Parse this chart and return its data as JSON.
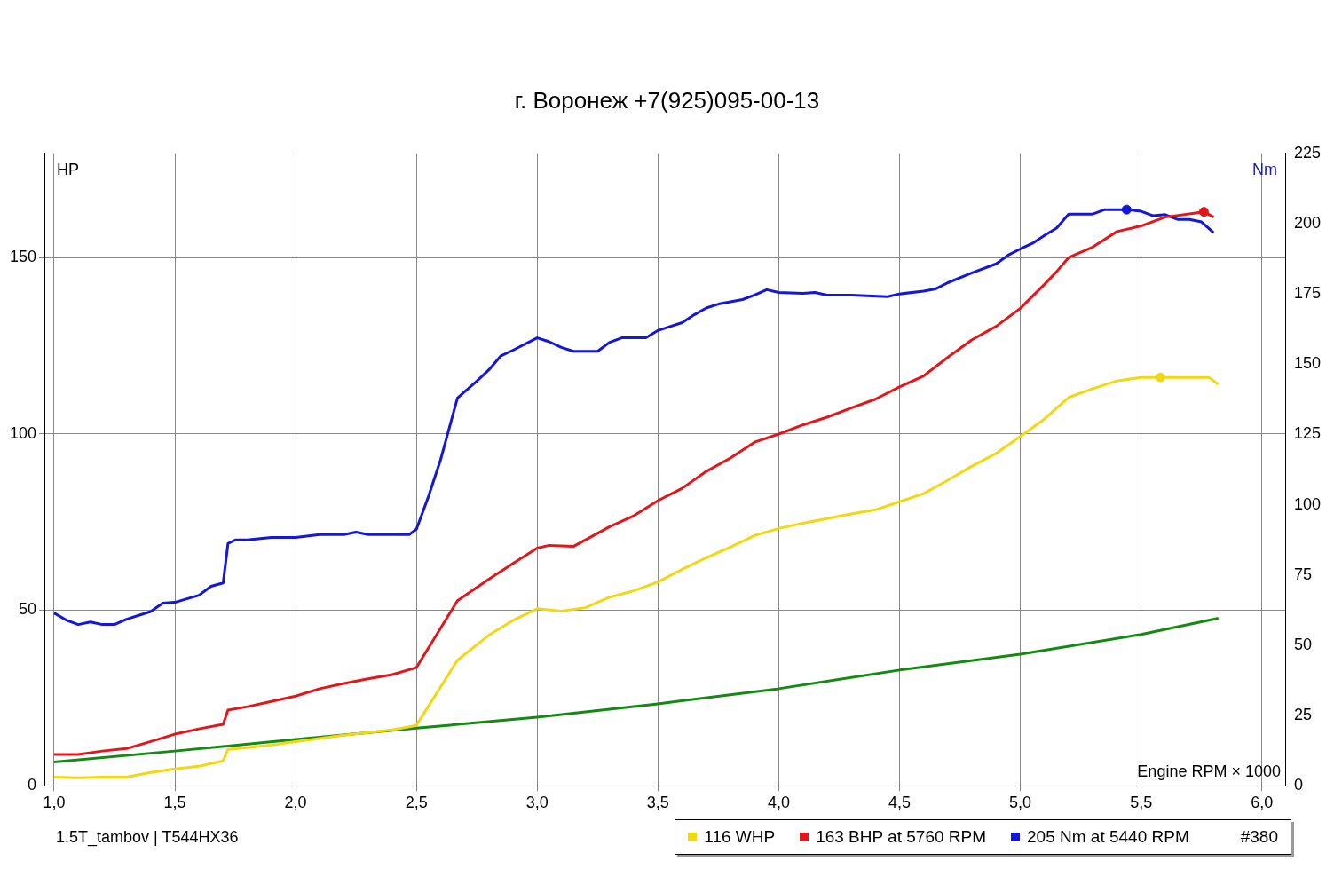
{
  "chart_data": {
    "type": "line",
    "title": "г. Воронеж    +7(925)095-00-13",
    "xlabel": "Engine RPM × 1000",
    "ylabel": "HP",
    "y2label": "Nm",
    "legend_title": "#380",
    "annotations": [
      "1.5T_tambov | T544HX36"
    ],
    "xlim": [
      0.96,
      6.1
    ],
    "xticks": [
      {
        "value": 1,
        "label": "1,0"
      },
      {
        "value": 1.5,
        "label": "1,5"
      },
      {
        "value": 2,
        "label": "2,0"
      },
      {
        "value": 2.5,
        "label": "2,5"
      },
      {
        "value": 3,
        "label": "3,0"
      },
      {
        "value": 3.5,
        "label": "3,5"
      },
      {
        "value": 4,
        "label": "4,0"
      },
      {
        "value": 4.5,
        "label": "4,5"
      },
      {
        "value": 5,
        "label": "5,0"
      },
      {
        "value": 5.5,
        "label": "5,5"
      },
      {
        "value": 6,
        "label": "6,0"
      }
    ],
    "ylim": [
      0,
      179.6
    ],
    "yticks": [
      0,
      50,
      100,
      150
    ],
    "y2lim": [
      0,
      225
    ],
    "y2ticks": [
      0,
      25,
      50,
      75,
      100,
      125,
      150,
      175,
      200,
      225
    ],
    "grid": true,
    "legend": "bottom right",
    "marker": "none",
    "line_style": "solid",
    "series": [
      {
        "name": "116 WHP",
        "color": "#f2d813",
        "x": [
          1.0,
          1.1,
          1.2,
          1.3,
          1.4,
          1.5,
          1.6,
          1.7,
          1.72,
          1.8,
          1.9,
          2.0,
          2.2,
          2.4,
          2.5,
          2.67,
          2.8,
          2.9,
          3.0,
          3.1,
          3.2,
          3.3,
          3.4,
          3.5,
          3.6,
          3.7,
          3.8,
          3.9,
          4.0,
          4.1,
          4.2,
          4.3,
          4.4,
          4.5,
          4.6,
          4.7,
          4.8,
          4.9,
          5.0,
          5.1,
          5.2,
          5.3,
          5.4,
          5.5,
          5.58,
          5.7,
          5.78,
          5.82
        ],
        "values": [
          2.5,
          2.3,
          2.5,
          2.5,
          3.8,
          4.8,
          5.6,
          7.1,
          10.4,
          10.9,
          11.6,
          12.6,
          14.4,
          15.9,
          17.2,
          35.7,
          42.8,
          47,
          50.3,
          49.6,
          50.6,
          53.6,
          55.4,
          57.9,
          61.5,
          64.8,
          67.8,
          71.1,
          73.1,
          74.6,
          75.9,
          77.2,
          78.4,
          80.7,
          83,
          86.8,
          90.8,
          94.4,
          99.2,
          104.2,
          110.3,
          112.8,
          115,
          116,
          116,
          116,
          116,
          114
        ]
      },
      {
        "name": "163 BHP at 5760 RPM",
        "color": "#e3171b",
        "x": [
          1.0,
          1.1,
          1.2,
          1.3,
          1.4,
          1.5,
          1.6,
          1.7,
          1.72,
          1.8,
          1.9,
          2.0,
          2.1,
          2.2,
          2.3,
          2.4,
          2.5,
          2.67,
          2.8,
          2.9,
          3.0,
          3.05,
          3.15,
          3.3,
          3.4,
          3.5,
          3.6,
          3.7,
          3.8,
          3.9,
          4.0,
          4.1,
          4.2,
          4.3,
          4.4,
          4.5,
          4.6,
          4.7,
          4.8,
          4.9,
          5.0,
          5.1,
          5.15,
          5.2,
          5.3,
          5.4,
          5.5,
          5.6,
          5.76,
          5.8
        ],
        "values": [
          8.9,
          8.9,
          9.9,
          10.6,
          12.6,
          14.7,
          16.2,
          17.5,
          21.5,
          22.5,
          24,
          25.5,
          27.6,
          29.1,
          30.4,
          31.6,
          33.6,
          52.6,
          58.7,
          63.2,
          67.5,
          68.3,
          68,
          73.6,
          76.7,
          81,
          84.5,
          89.3,
          93.1,
          97.6,
          99.9,
          102.5,
          104.7,
          107.3,
          109.8,
          113.3,
          116.4,
          121.7,
          126.7,
          130.5,
          135.6,
          142.4,
          146,
          150,
          153,
          157.4,
          159,
          161.5,
          163,
          161.5
        ]
      },
      {
        "name": "205 Nm at 5440 RPM",
        "color": "#1417d6",
        "axis": "y2",
        "x": [
          1.0,
          1.05,
          1.1,
          1.15,
          1.2,
          1.25,
          1.3,
          1.4,
          1.45,
          1.5,
          1.6,
          1.65,
          1.7,
          1.72,
          1.75,
          1.8,
          1.9,
          2.0,
          2.1,
          2.2,
          2.25,
          2.3,
          2.47,
          2.5,
          2.55,
          2.6,
          2.67,
          2.75,
          2.8,
          2.85,
          2.9,
          3.0,
          3.05,
          3.1,
          3.15,
          3.25,
          3.3,
          3.35,
          3.45,
          3.5,
          3.6,
          3.65,
          3.7,
          3.75,
          3.85,
          3.9,
          3.95,
          4.0,
          4.1,
          4.15,
          4.2,
          4.3,
          4.45,
          4.5,
          4.6,
          4.65,
          4.7,
          4.8,
          4.9,
          4.95,
          5.0,
          5.05,
          5.1,
          5.15,
          5.2,
          5.3,
          5.35,
          5.44,
          5.5,
          5.55,
          5.6,
          5.65,
          5.7,
          5.75,
          5.8
        ],
        "values": [
          61.5,
          59,
          57.4,
          58.3,
          57.4,
          57.4,
          59.3,
          62,
          65,
          65.3,
          67.8,
          71,
          72.2,
          86.2,
          87.5,
          87.5,
          88.4,
          88.4,
          89.4,
          89.4,
          90.3,
          89.4,
          89.4,
          91.3,
          103,
          116,
          138,
          144,
          148,
          153,
          155,
          159.4,
          158,
          156,
          154.6,
          154.6,
          157.8,
          159.4,
          159.4,
          162,
          164.8,
          167.6,
          170,
          171.4,
          173,
          174.6,
          176.5,
          175.5,
          175.2,
          175.5,
          174.6,
          174.6,
          174,
          175,
          176,
          176.8,
          179,
          182.5,
          185.7,
          188.8,
          191,
          193,
          195.8,
          198.4,
          203.4,
          203.4,
          205,
          205,
          204.4,
          202.8,
          203.2,
          201.5,
          201.5,
          200.6,
          196.8
        ]
      },
      {
        "color": "#158a12",
        "x": [
          1.0,
          1.5,
          2.0,
          2.5,
          3.0,
          3.5,
          4.0,
          4.5,
          5.0,
          5.5,
          5.82
        ],
        "values": [
          6.8,
          9.9,
          13.2,
          16.4,
          19.5,
          23.3,
          27.6,
          32.9,
          37.4,
          43,
          47.6
        ]
      },
      {
        "type": "scatter",
        "marker": "circle",
        "color": "#f2d813",
        "x": [
          5.58
        ],
        "values": [
          116
        ]
      },
      {
        "type": "scatter",
        "marker": "circle",
        "color": "#e3171b",
        "x": [
          5.76
        ],
        "values": [
          163
        ]
      },
      {
        "type": "scatter",
        "marker": "circle",
        "color": "#1417d6",
        "axis": "y2",
        "x": [
          5.44
        ],
        "values": [
          205
        ]
      }
    ]
  }
}
